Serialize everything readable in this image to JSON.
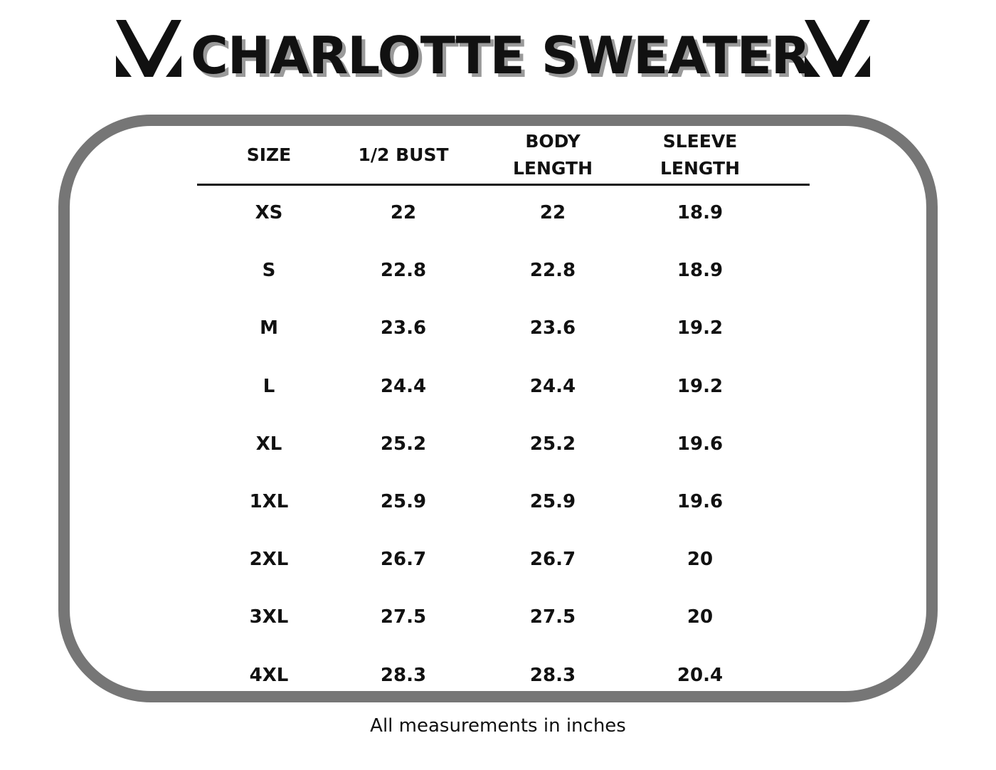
{
  "header": {
    "title": "CHARLOTTE SWEATER",
    "logo_icon": "chevron-v-logo-icon"
  },
  "colors": {
    "frame": "#767676",
    "title_shadow": "#9a9a9a",
    "text": "#111111"
  },
  "table": {
    "columns": [
      "SIZE",
      "1/2 BUST",
      "BODY\nLENGTH",
      "SLEEVE\nLENGTH"
    ],
    "rows": [
      [
        "XS",
        "22",
        "22",
        "18.9"
      ],
      [
        "S",
        "22.8",
        "22.8",
        "18.9"
      ],
      [
        "M",
        "23.6",
        "23.6",
        "19.2"
      ],
      [
        "L",
        "24.4",
        "24.4",
        "19.2"
      ],
      [
        "XL",
        "25.2",
        "25.2",
        "19.6"
      ],
      [
        "1XL",
        "25.9",
        "25.9",
        "19.6"
      ],
      [
        "2XL",
        "26.7",
        "26.7",
        "20"
      ],
      [
        "3XL",
        "27.5",
        "27.5",
        "20"
      ],
      [
        "4XL",
        "28.3",
        "28.3",
        "20.4"
      ]
    ]
  },
  "footnote": "All measurements in inches"
}
